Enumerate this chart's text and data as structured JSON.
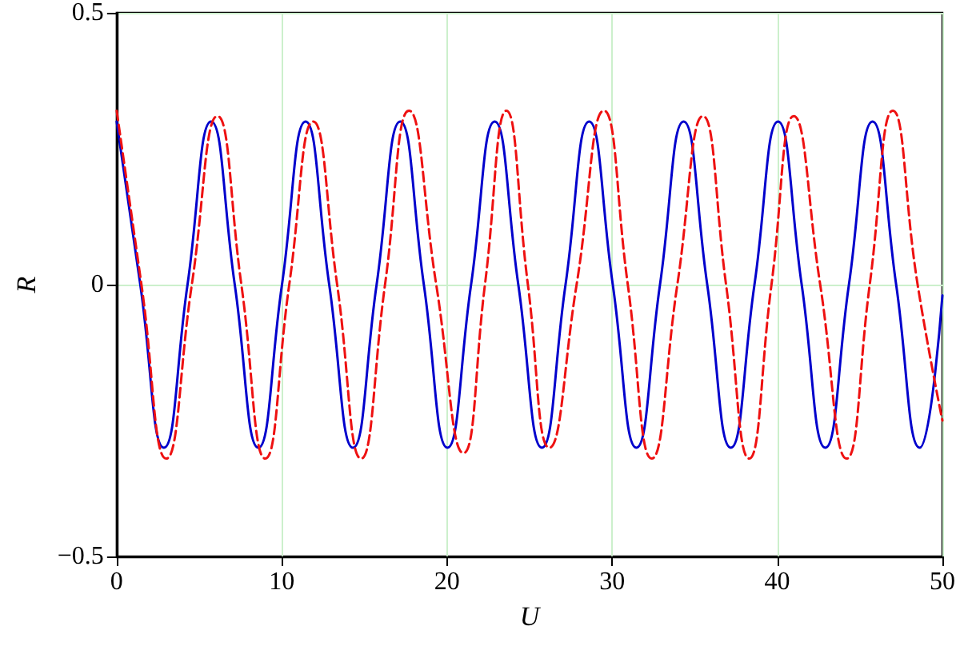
{
  "chart_data": {
    "type": "line",
    "xlabel": "U",
    "ylabel": "R",
    "xlim": [
      0,
      50
    ],
    "xticks": [
      0,
      10,
      20,
      30,
      40,
      50
    ],
    "ylim": [
      -0.5,
      0.5
    ],
    "yticks": [
      {
        "value": -0.5,
        "label": "−0.5"
      },
      0,
      0.5
    ],
    "grid": true,
    "marker": "none",
    "series": [
      {
        "color": "#0000cc",
        "line_style": "solid",
        "x": [
          0,
          1.43,
          2.86,
          4.29,
          5.72,
          7.15,
          8.58,
          10.01,
          11.44,
          12.87,
          14.31,
          15.74,
          17.17,
          18.6,
          20.03,
          21.46,
          22.89,
          24.32,
          25.75,
          27.18,
          28.61,
          30.04,
          31.47,
          32.9,
          34.33,
          35.76,
          37.19,
          38.62,
          40.05,
          41.48,
          42.91,
          44.34,
          45.77,
          47.2,
          48.63,
          50
        ],
        "values": [
          0.3,
          0,
          -0.3,
          0,
          0.3,
          0,
          -0.3,
          0,
          0.3,
          0,
          -0.3,
          0,
          0.3,
          0,
          -0.3,
          0,
          0.3,
          0,
          -0.3,
          0,
          0.3,
          0,
          -0.3,
          0,
          0.3,
          0,
          -0.3,
          0,
          0.3,
          0,
          -0.3,
          0,
          0.3,
          0,
          -0.3,
          -0.02
        ]
      },
      {
        "color": "#ee1111",
        "line_style": "dashed",
        "x": [
          0,
          1.5,
          3.0,
          4.55,
          6.1,
          7.55,
          9.0,
          10.45,
          11.9,
          13.35,
          14.8,
          16.25,
          17.7,
          19.35,
          21.0,
          22.3,
          23.6,
          24.9,
          26.2,
          27.85,
          29.5,
          30.95,
          32.4,
          33.95,
          35.5,
          36.9,
          38.3,
          39.65,
          41.0,
          42.6,
          44.2,
          45.6,
          47.0,
          48.5,
          50
        ],
        "values": [
          0.32,
          0,
          -0.32,
          0,
          0.31,
          0,
          -0.32,
          0,
          0.3,
          0,
          -0.32,
          0,
          0.32,
          0,
          -0.31,
          0,
          0.32,
          0,
          -0.3,
          0,
          0.32,
          0,
          -0.32,
          0,
          0.31,
          0,
          -0.32,
          0,
          0.31,
          0,
          -0.32,
          0,
          0.32,
          0,
          -0.25
        ]
      }
    ]
  }
}
